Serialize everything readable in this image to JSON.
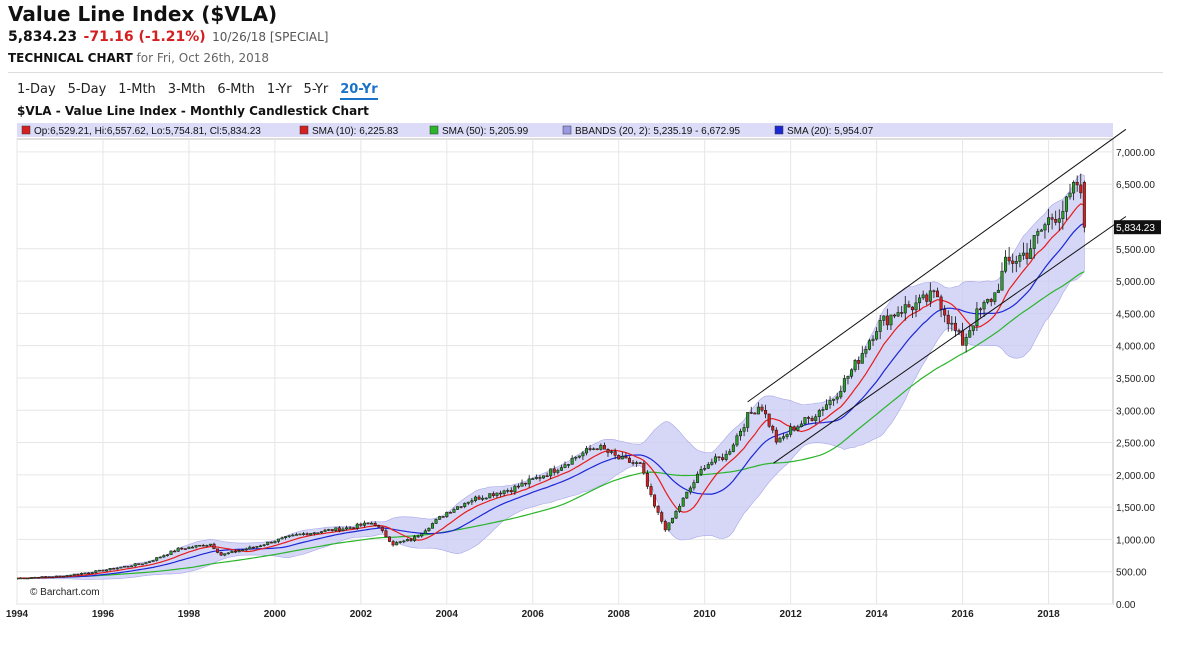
{
  "header": {
    "title": "Value Line Index ($VLA)",
    "last": "5,834.23",
    "change": "-71.16 (-1.21%)",
    "date": "10/26/18 [SPECIAL]",
    "tech_label": "TECHNICAL CHART",
    "tech_date": "for Fri, Oct 26th, 2018"
  },
  "tabs": [
    {
      "label": "1-Day",
      "active": false
    },
    {
      "label": "5-Day",
      "active": false
    },
    {
      "label": "1-Mth",
      "active": false
    },
    {
      "label": "3-Mth",
      "active": false
    },
    {
      "label": "6-Mth",
      "active": false
    },
    {
      "label": "1-Yr",
      "active": false
    },
    {
      "label": "5-Yr",
      "active": false
    },
    {
      "label": "20-Yr",
      "active": true
    }
  ],
  "colors": {
    "up": "#2a9d2a",
    "down": "#d42020",
    "sma10": "#e81c1c",
    "sma50": "#2ab52a",
    "sma20": "#1c28d6",
    "bbands": "#c8c8f4",
    "legend_bg": "#dcdcf8"
  },
  "chart_data": {
    "type": "candlestick",
    "title": "$VLA - Value Line Index - Monthly Candlestick Chart",
    "legend": [
      {
        "label": "Op:6,529.21, Hi:6,557.62, Lo:5,754.81, Cl:5,834.23",
        "color": "#d42020"
      },
      {
        "label": "SMA (10): 6,225.83",
        "color": "#d42020"
      },
      {
        "label": "SMA (50): 5,205.99",
        "color": "#2ab52a"
      },
      {
        "label": "BBANDS (20, 2): 5,235.19 - 6,672.95",
        "color": "#9999e6"
      },
      {
        "label": "SMA (20): 5,954.07",
        "color": "#1c28d6"
      }
    ],
    "last_value_label": "5,834.23",
    "last_value": 5834.23,
    "watermark": "© Barchart.com",
    "xlim": [
      1994.0,
      2019.5
    ],
    "ylim": [
      0,
      7200
    ],
    "x_ticks": [
      1994,
      1996,
      1998,
      2000,
      2002,
      2004,
      2006,
      2008,
      2010,
      2012,
      2014,
      2016,
      2018
    ],
    "x_tick_labels": [
      "1994",
      "1996",
      "1998",
      "2000",
      "2002",
      "2004",
      "2006",
      "2008",
      "2010",
      "2012",
      "2014",
      "2016",
      "2018"
    ],
    "y_ticks": [
      0,
      500,
      1000,
      1500,
      2000,
      2500,
      3000,
      3500,
      4000,
      4500,
      5000,
      5500,
      6500,
      7000
    ],
    "y_tick_labels": [
      "0.00",
      "500.00",
      "1,000.00",
      "1,500.00",
      "2,000.00",
      "2,500.00",
      "3,000.00",
      "3,500.00",
      "4,000.00",
      "4,500.00",
      "5,000.00",
      "5,500.00",
      "6,500.00",
      "7,000.00"
    ],
    "price_anchors": [
      [
        1994.0,
        400
      ],
      [
        1995.0,
        430
      ],
      [
        1996.0,
        520
      ],
      [
        1997.0,
        640
      ],
      [
        1997.75,
        850
      ],
      [
        1998.5,
        930
      ],
      [
        1998.75,
        760
      ],
      [
        1999.5,
        880
      ],
      [
        2000.0,
        980
      ],
      [
        2000.6,
        1080
      ],
      [
        2001.0,
        1120
      ],
      [
        2001.7,
        1180
      ],
      [
        2002.3,
        1260
      ],
      [
        2002.75,
        930
      ],
      [
        2003.2,
        1000
      ],
      [
        2004.0,
        1420
      ],
      [
        2004.5,
        1600
      ],
      [
        2005.0,
        1700
      ],
      [
        2005.5,
        1780
      ],
      [
        2006.0,
        1920
      ],
      [
        2006.5,
        2080
      ],
      [
        2007.0,
        2280
      ],
      [
        2007.5,
        2440
      ],
      [
        2008.0,
        2250
      ],
      [
        2008.5,
        2150
      ],
      [
        2008.8,
        1550
      ],
      [
        2009.1,
        1150
      ],
      [
        2009.5,
        1620
      ],
      [
        2010.0,
        2150
      ],
      [
        2010.5,
        2300
      ],
      [
        2011.0,
        2900
      ],
      [
        2011.3,
        3100
      ],
      [
        2011.7,
        2480
      ],
      [
        2012.0,
        2700
      ],
      [
        2012.5,
        2900
      ],
      [
        2013.0,
        3200
      ],
      [
        2013.5,
        3700
      ],
      [
        2014.0,
        4300
      ],
      [
        2014.5,
        4550
      ],
      [
        2015.0,
        4650
      ],
      [
        2015.4,
        4800
      ],
      [
        2015.75,
        4300
      ],
      [
        2016.0,
        4050
      ],
      [
        2016.3,
        4450
      ],
      [
        2016.75,
        4800
      ],
      [
        2017.0,
        5250
      ],
      [
        2017.5,
        5450
      ],
      [
        2018.0,
        5950
      ],
      [
        2018.4,
        6150
      ],
      [
        2018.7,
        6550
      ],
      [
        2018.82,
        5834.23
      ]
    ],
    "trend_lines": [
      {
        "x1": 2011.0,
        "y1": 3130,
        "x2": 2019.8,
        "y2": 7350
      },
      {
        "x1": 2011.6,
        "y1": 2180,
        "x2": 2019.8,
        "y2": 6000
      }
    ]
  }
}
